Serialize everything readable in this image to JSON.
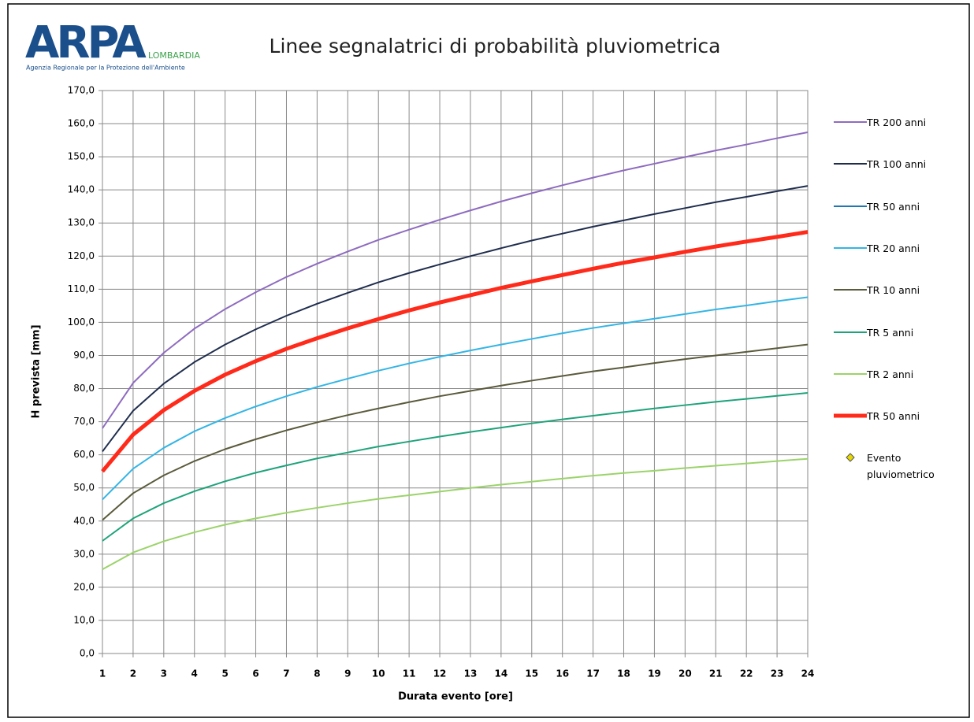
{
  "logo": {
    "mark": "ARPA",
    "region": "LOMBARDIA",
    "agency": "Agenzia Regionale per la Protezione dell'Ambiente"
  },
  "chart_data": {
    "type": "line",
    "title": "Linee segnalatrici di probabilità pluviometrica",
    "x_label": "Durata evento [ore]",
    "y_label": "H prevista [mm]",
    "x": [
      1,
      2,
      3,
      4,
      5,
      6,
      7,
      8,
      9,
      10,
      11,
      12,
      13,
      14,
      15,
      16,
      17,
      18,
      19,
      20,
      21,
      22,
      23,
      24
    ],
    "xlim": [
      1,
      24
    ],
    "ylim": [
      0,
      170
    ],
    "yticks": [
      {
        "value": 0,
        "label": "0,0"
      },
      {
        "value": 10,
        "label": "10,0"
      },
      {
        "value": 20,
        "label": "20,0"
      },
      {
        "value": 30,
        "label": "30,0"
      },
      {
        "value": 40,
        "label": "40,0"
      },
      {
        "value": 50,
        "label": "50,0"
      },
      {
        "value": 60,
        "label": "60,0"
      },
      {
        "value": 70,
        "label": "70,0"
      },
      {
        "value": 80,
        "label": "80,0"
      },
      {
        "value": 90,
        "label": "90,0"
      },
      {
        "value": 100,
        "label": "100,0"
      },
      {
        "value": 110,
        "label": "110,0"
      },
      {
        "value": 120,
        "label": "120,0"
      },
      {
        "value": 130,
        "label": "130,0"
      },
      {
        "value": 140,
        "label": "140,0"
      },
      {
        "value": 150,
        "label": "150,0"
      },
      {
        "value": 160,
        "label": "160,0"
      },
      {
        "value": 170,
        "label": "170,0"
      }
    ],
    "grid": true,
    "legend": "right",
    "series": [
      {
        "name": "TR 200 anni",
        "color": "#8e6bbf",
        "line_width": 2,
        "values": [
          68.0,
          81.7,
          90.8,
          98.1,
          104.0,
          109.1,
          113.7,
          117.7,
          121.4,
          124.9,
          128.0,
          131.0,
          133.8,
          136.5,
          139.0,
          141.4,
          143.7,
          145.9,
          147.9,
          149.9,
          151.9,
          153.7,
          155.6,
          157.4
        ]
      },
      {
        "name": "TR 100 anni",
        "color": "#1f2d4d",
        "line_width": 2,
        "values": [
          61.0,
          73.3,
          81.5,
          88.0,
          93.3,
          97.9,
          102.0,
          105.6,
          108.9,
          112.1,
          114.9,
          117.5,
          120.0,
          122.4,
          124.7,
          126.8,
          128.9,
          130.8,
          132.7,
          134.5,
          136.3,
          137.9,
          139.6,
          141.2
        ]
      },
      {
        "name": "TR 50 anni",
        "color": "#1f77b4",
        "line_width": 2,
        "values": [
          55.0,
          66.1,
          73.5,
          79.3,
          84.2,
          88.3,
          92.0,
          95.2,
          98.2,
          101.0,
          103.6,
          106.0,
          108.2,
          110.4,
          112.4,
          114.3,
          116.2,
          118.0,
          119.6,
          121.3,
          122.9,
          124.4,
          125.8,
          127.3
        ]
      },
      {
        "name": "TR 20 anni",
        "color": "#33b5e5",
        "line_width": 2,
        "values": [
          46.5,
          55.8,
          62.1,
          67.1,
          71.1,
          74.6,
          77.7,
          80.5,
          83.0,
          85.4,
          87.6,
          89.6,
          91.5,
          93.3,
          95.0,
          96.7,
          98.3,
          99.7,
          101.1,
          102.5,
          103.9,
          105.1,
          106.4,
          107.6
        ]
      },
      {
        "name": "TR 10 anni",
        "color": "#5a5a3c",
        "line_width": 2,
        "values": [
          40.3,
          48.4,
          53.8,
          58.1,
          61.7,
          64.7,
          67.4,
          69.8,
          72.0,
          74.0,
          75.9,
          77.7,
          79.3,
          80.9,
          82.4,
          83.8,
          85.2,
          86.4,
          87.7,
          88.9,
          90.0,
          91.1,
          92.2,
          93.3
        ]
      },
      {
        "name": "TR 5 anni",
        "color": "#1ea37a",
        "line_width": 2,
        "values": [
          34.0,
          40.8,
          45.4,
          49.0,
          52.0,
          54.6,
          56.8,
          58.9,
          60.7,
          62.5,
          64.0,
          65.5,
          66.9,
          68.2,
          69.5,
          70.7,
          71.8,
          72.9,
          74.0,
          75.0,
          76.0,
          76.9,
          77.8,
          78.7
        ]
      },
      {
        "name": "TR 2 anni",
        "color": "#9bd36a",
        "line_width": 2,
        "values": [
          25.4,
          30.5,
          33.9,
          36.6,
          38.9,
          40.8,
          42.5,
          44.0,
          45.4,
          46.7,
          47.8,
          48.9,
          50.0,
          51.0,
          51.9,
          52.8,
          53.7,
          54.5,
          55.2,
          56.0,
          56.7,
          57.4,
          58.1,
          58.8
        ]
      },
      {
        "name": "TR 50 anni",
        "color": "#ff2a1a",
        "line_width": 5,
        "values": [
          55.0,
          66.1,
          73.5,
          79.3,
          84.2,
          88.3,
          92.0,
          95.2,
          98.2,
          101.0,
          103.6,
          106.0,
          108.2,
          110.4,
          112.4,
          114.3,
          116.2,
          118.0,
          119.6,
          121.3,
          122.9,
          124.4,
          125.8,
          127.3
        ]
      },
      {
        "name": "Evento pluviometrico",
        "color": "#e6d800",
        "marker": "diamond",
        "values": [
          null,
          null,
          null,
          null,
          null,
          null,
          null,
          null,
          null,
          null,
          null,
          null,
          null,
          null,
          null,
          null,
          null,
          null,
          null,
          null,
          null,
          null,
          null,
          null
        ]
      }
    ]
  }
}
